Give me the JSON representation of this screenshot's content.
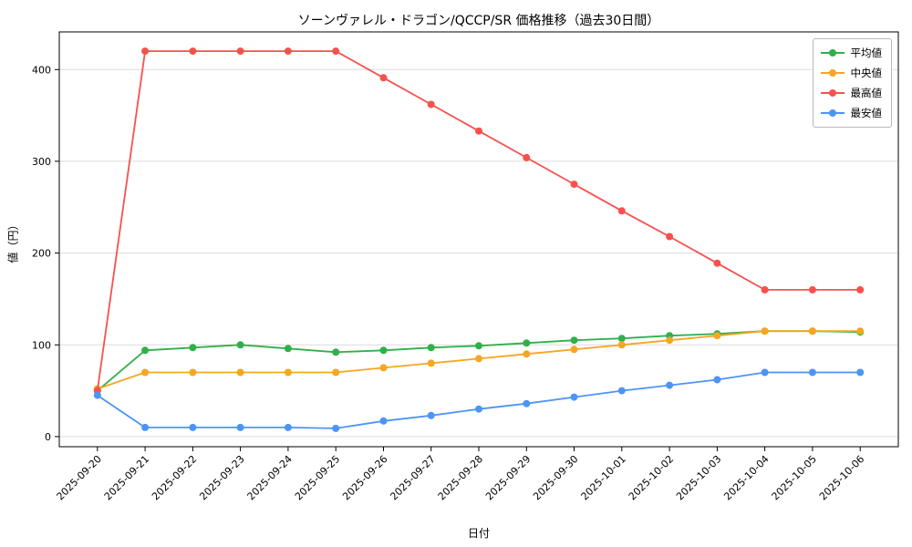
{
  "chart_data": {
    "type": "line",
    "title": "ソーンヴァレル・ドラゴン/QCCP/SR 価格推移（過去30日間）",
    "xlabel": "日付",
    "ylabel": "値（円）",
    "categories": [
      "2025-09-20",
      "2025-09-21",
      "2025-09-22",
      "2025-09-23",
      "2025-09-24",
      "2025-09-25",
      "2025-09-26",
      "2025-09-27",
      "2025-09-28",
      "2025-09-29",
      "2025-09-30",
      "2025-10-01",
      "2025-10-02",
      "2025-10-03",
      "2025-10-04",
      "2025-10-05",
      "2025-10-06"
    ],
    "series": [
      {
        "name": "平均値",
        "color": "#2fb04a",
        "values": [
          50,
          94,
          97,
          100,
          96,
          92,
          94,
          97,
          99,
          102,
          105,
          107,
          110,
          112,
          115,
          115,
          114
        ]
      },
      {
        "name": "中央値",
        "color": "#f5a623",
        "values": [
          52,
          70,
          70,
          70,
          70,
          70,
          75,
          80,
          85,
          90,
          95,
          100,
          105,
          110,
          115,
          115,
          115
        ]
      },
      {
        "name": "最高値",
        "color": "#f8504f",
        "values": [
          50,
          420,
          420,
          420,
          420,
          420,
          391,
          362,
          333,
          304,
          275,
          246,
          218,
          189,
          160,
          160,
          160
        ]
      },
      {
        "name": "最安値",
        "color": "#4d94f5",
        "values": [
          45,
          10,
          10,
          10,
          10,
          9,
          17,
          23,
          30,
          36,
          43,
          50,
          56,
          62,
          70,
          70,
          70
        ]
      }
    ],
    "yticks": [
      0,
      100,
      200,
      300,
      400
    ],
    "ylim": [
      -11,
      441
    ],
    "grid": true,
    "legend_position": "upper right"
  }
}
